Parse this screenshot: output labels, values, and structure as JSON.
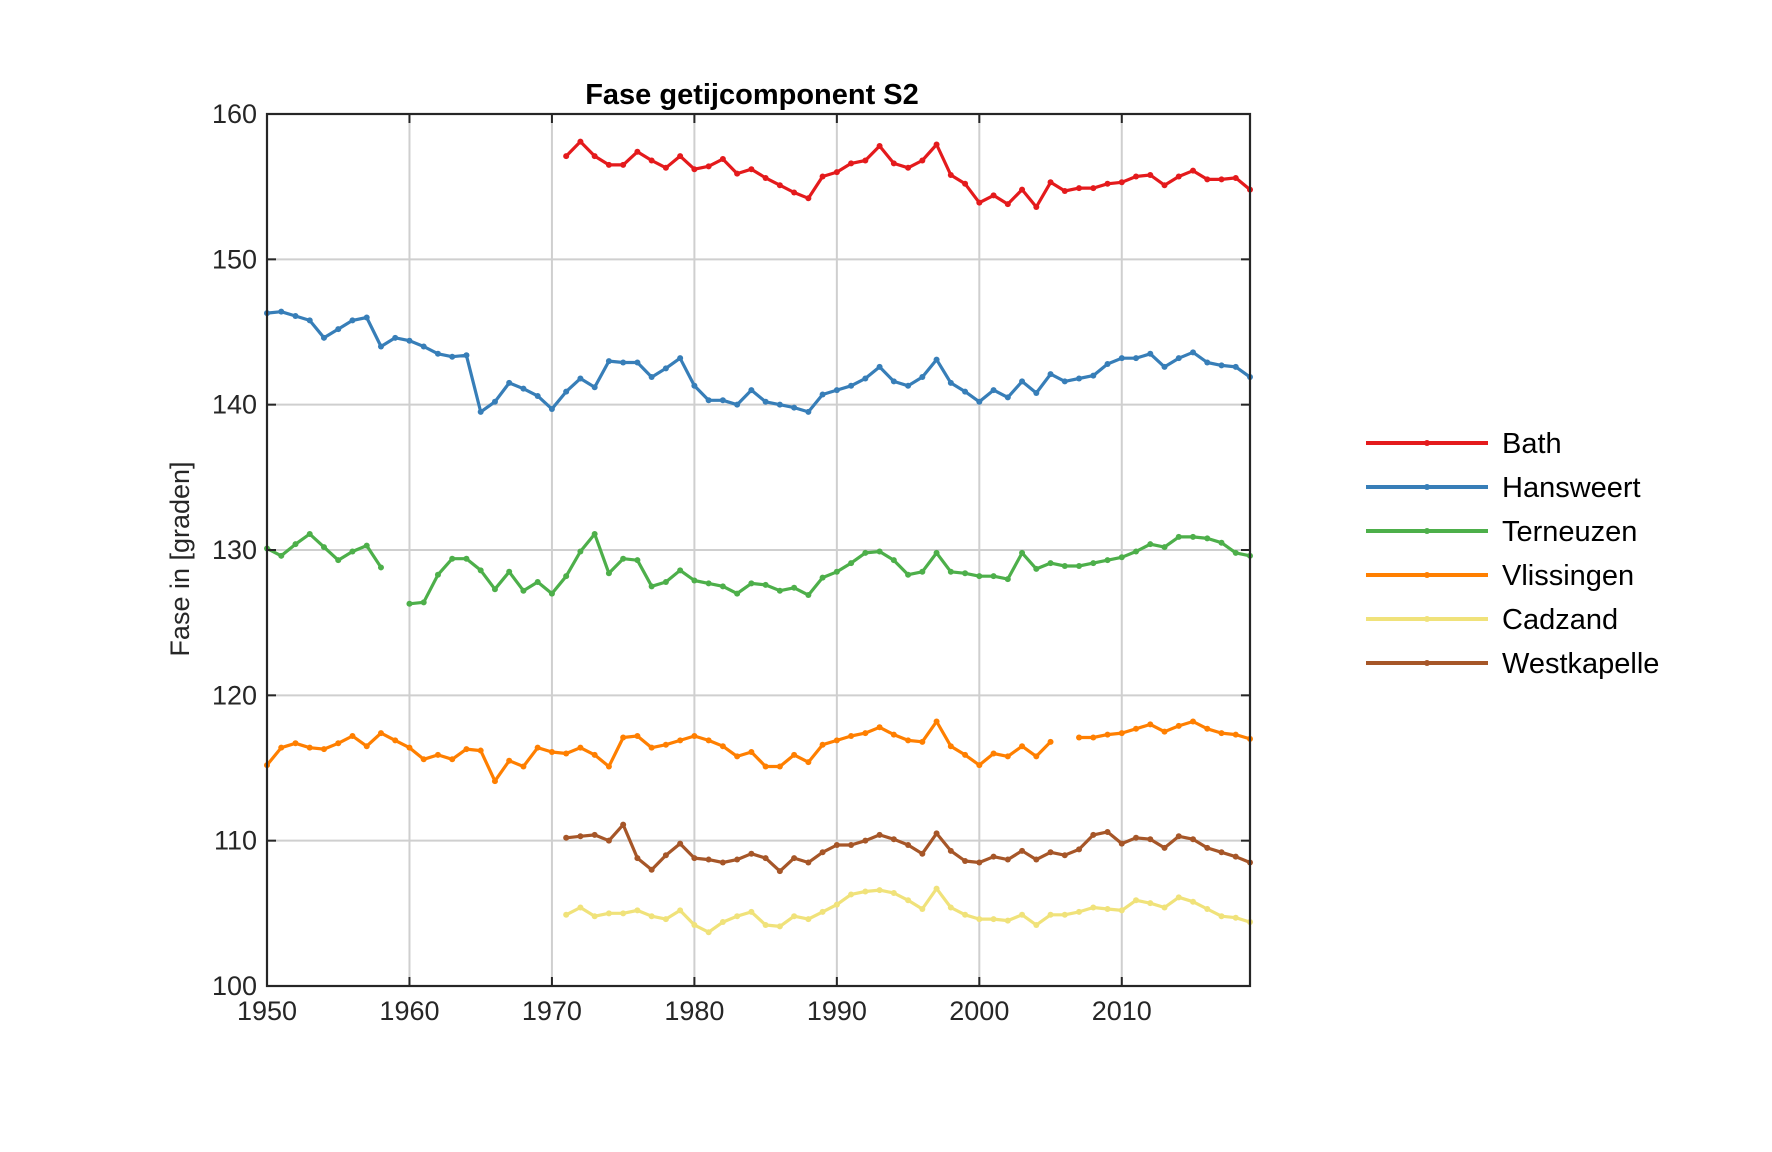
{
  "chart_data": {
    "type": "line",
    "title": "Fase getijcomponent S2",
    "xlabel": "",
    "ylabel": "Fase in [graden]",
    "xlim": [
      1950,
      2019
    ],
    "ylim": [
      100,
      160
    ],
    "xticks": [
      1950,
      1960,
      1970,
      1980,
      1990,
      2000,
      2010
    ],
    "yticks": [
      100,
      110,
      120,
      130,
      140,
      150,
      160
    ],
    "grid": true,
    "legend_position": "outside-right",
    "series": [
      {
        "name": "Bath",
        "color": "#e41a1c",
        "x": [
          1971,
          1972,
          1973,
          1974,
          1975,
          1976,
          1977,
          1978,
          1979,
          1980,
          1981,
          1982,
          1983,
          1984,
          1985,
          1986,
          1987,
          1988,
          1989,
          1990,
          1991,
          1992,
          1993,
          1994,
          1995,
          1996,
          1997,
          1998,
          1999,
          2000,
          2001,
          2002,
          2003,
          2004,
          2005,
          2006,
          2007,
          2008,
          2009,
          2010,
          2011,
          2012,
          2013,
          2014,
          2015,
          2016,
          2017,
          2018,
          2019
        ],
        "y": [
          157.1,
          158.1,
          157.1,
          156.5,
          156.5,
          157.4,
          156.8,
          156.3,
          157.1,
          156.2,
          156.4,
          156.9,
          155.9,
          156.2,
          155.6,
          155.1,
          154.6,
          154.2,
          155.7,
          156.0,
          156.6,
          156.8,
          157.8,
          156.6,
          156.3,
          156.8,
          157.9,
          155.8,
          155.2,
          153.9,
          154.4,
          153.8,
          154.8,
          153.6,
          155.3,
          154.7,
          154.9,
          154.9,
          155.2,
          155.3,
          155.7,
          155.8,
          155.1,
          155.7,
          156.1,
          155.5,
          155.5,
          155.6,
          154.8
        ]
      },
      {
        "name": "Hansweert",
        "color": "#377eb8",
        "x": [
          1950,
          1951,
          1952,
          1953,
          1954,
          1955,
          1956,
          1957,
          1958,
          1959,
          1960,
          1961,
          1962,
          1963,
          1964,
          1965,
          1966,
          1967,
          1968,
          1969,
          1970,
          1971,
          1972,
          1973,
          1974,
          1975,
          1976,
          1977,
          1978,
          1979,
          1980,
          1981,
          1982,
          1983,
          1984,
          1985,
          1986,
          1987,
          1988,
          1989,
          1990,
          1991,
          1992,
          1993,
          1994,
          1995,
          1996,
          1997,
          1998,
          1999,
          2000,
          2001,
          2002,
          2003,
          2004,
          2005,
          2006,
          2007,
          2008,
          2009,
          2010,
          2011,
          2012,
          2013,
          2014,
          2015,
          2016,
          2017,
          2018,
          2019
        ],
        "y": [
          146.3,
          146.4,
          146.1,
          145.8,
          144.6,
          145.2,
          145.8,
          146.0,
          144.0,
          144.6,
          144.4,
          144.0,
          143.5,
          143.3,
          143.4,
          139.5,
          140.2,
          141.5,
          141.1,
          140.6,
          139.7,
          140.9,
          141.8,
          141.2,
          143.0,
          142.9,
          142.9,
          141.9,
          142.5,
          143.2,
          141.3,
          140.3,
          140.3,
          140.0,
          141.0,
          140.2,
          140.0,
          139.8,
          139.5,
          140.7,
          141.0,
          141.3,
          141.8,
          142.6,
          141.6,
          141.3,
          141.9,
          143.1,
          141.5,
          140.9,
          140.2,
          141.0,
          140.5,
          141.6,
          140.8,
          142.1,
          141.6,
          141.8,
          142.0,
          142.8,
          143.2,
          143.2,
          143.5,
          142.6,
          143.2,
          143.6,
          142.9,
          142.7,
          142.6,
          141.9
        ]
      },
      {
        "name": "Terneuzen",
        "color": "#4daf4a",
        "x": [
          1950,
          1951,
          1952,
          1953,
          1954,
          1955,
          1956,
          1957,
          1958,
          null,
          1960,
          1961,
          1962,
          1963,
          1964,
          1965,
          1966,
          1967,
          1968,
          1969,
          1970,
          1971,
          1972,
          1973,
          1974,
          1975,
          1976,
          1977,
          1978,
          1979,
          1980,
          1981,
          1982,
          1983,
          1984,
          1985,
          1986,
          1987,
          1988,
          1989,
          1990,
          1991,
          1992,
          1993,
          1994,
          1995,
          1996,
          1997,
          1998,
          1999,
          2000,
          2001,
          2002,
          2003,
          2004,
          2005,
          2006,
          2007,
          2008,
          2009,
          2010,
          2011,
          2012,
          2013,
          2014,
          2015,
          2016,
          2017,
          2018,
          2019
        ],
        "y": [
          130.1,
          129.6,
          130.4,
          131.1,
          130.2,
          129.3,
          129.9,
          130.3,
          128.8,
          null,
          126.3,
          126.4,
          128.3,
          129.4,
          129.4,
          128.6,
          127.3,
          128.5,
          127.2,
          127.8,
          127.0,
          128.2,
          129.9,
          131.1,
          128.4,
          129.4,
          129.3,
          127.5,
          127.8,
          128.6,
          127.9,
          127.7,
          127.5,
          127.0,
          127.7,
          127.6,
          127.2,
          127.4,
          126.9,
          128.1,
          128.5,
          129.1,
          129.8,
          129.9,
          129.3,
          128.3,
          128.5,
          129.8,
          128.5,
          128.4,
          128.2,
          128.2,
          128.0,
          129.8,
          128.7,
          129.1,
          128.9,
          128.9,
          129.1,
          129.3,
          129.5,
          129.9,
          130.4,
          130.2,
          130.9,
          130.9,
          130.8,
          130.5,
          129.8,
          129.6
        ]
      },
      {
        "name": "Vlissingen",
        "color": "#ff7f00",
        "x": [
          1950,
          1951,
          1952,
          1953,
          1954,
          1955,
          1956,
          1957,
          1958,
          1959,
          1960,
          1961,
          1962,
          1963,
          1964,
          1965,
          1966,
          1967,
          1968,
          1969,
          1970,
          1971,
          1972,
          1973,
          1974,
          1975,
          1976,
          1977,
          1978,
          1979,
          1980,
          1981,
          1982,
          1983,
          1984,
          1985,
          1986,
          1987,
          1988,
          1989,
          1990,
          1991,
          1992,
          1993,
          1994,
          1995,
          1996,
          1997,
          1998,
          1999,
          2000,
          2001,
          2002,
          2003,
          2004,
          2005,
          null,
          2007,
          2008,
          2009,
          2010,
          2011,
          2012,
          2013,
          2014,
          2015,
          2016,
          2017,
          2018,
          2019
        ],
        "y": [
          115.2,
          116.4,
          116.7,
          116.4,
          116.3,
          116.7,
          117.2,
          116.5,
          117.4,
          116.9,
          116.4,
          115.6,
          115.9,
          115.6,
          116.3,
          116.2,
          114.1,
          115.5,
          115.1,
          116.4,
          116.1,
          116.0,
          116.4,
          115.9,
          115.1,
          117.1,
          117.2,
          116.4,
          116.6,
          116.9,
          117.2,
          116.9,
          116.5,
          115.8,
          116.1,
          115.1,
          115.1,
          115.9,
          115.4,
          116.6,
          116.9,
          117.2,
          117.4,
          117.8,
          117.3,
          116.9,
          116.8,
          118.2,
          116.5,
          115.9,
          115.2,
          116.0,
          115.8,
          116.5,
          115.8,
          116.8,
          null,
          117.1,
          117.1,
          117.3,
          117.4,
          117.7,
          118.0,
          117.5,
          117.9,
          118.2,
          117.7,
          117.4,
          117.3,
          117.0
        ]
      },
      {
        "name": "Cadzand",
        "color": "#f0e27a",
        "x": [
          1971,
          1972,
          1973,
          1974,
          1975,
          1976,
          1977,
          1978,
          1979,
          1980,
          1981,
          1982,
          1983,
          1984,
          1985,
          1986,
          1987,
          1988,
          1989,
          1990,
          1991,
          1992,
          1993,
          1994,
          1995,
          1996,
          1997,
          1998,
          1999,
          2000,
          2001,
          2002,
          2003,
          2004,
          2005,
          2006,
          2007,
          2008,
          2009,
          2010,
          2011,
          2012,
          2013,
          2014,
          2015,
          2016,
          2017,
          2018,
          2019
        ],
        "y": [
          104.9,
          105.4,
          104.8,
          105.0,
          105.0,
          105.2,
          104.8,
          104.6,
          105.2,
          104.2,
          103.7,
          104.4,
          104.8,
          105.1,
          104.2,
          104.1,
          104.8,
          104.6,
          105.1,
          105.6,
          106.3,
          106.5,
          106.6,
          106.4,
          105.9,
          105.3,
          106.7,
          105.4,
          104.9,
          104.6,
          104.6,
          104.5,
          104.9,
          104.2,
          104.9,
          104.9,
          105.1,
          105.4,
          105.3,
          105.2,
          105.9,
          105.7,
          105.4,
          106.1,
          105.8,
          105.3,
          104.8,
          104.7,
          104.4
        ]
      },
      {
        "name": "Westkapelle",
        "color": "#a65628",
        "x": [
          1971,
          1972,
          1973,
          1974,
          1975,
          1976,
          1977,
          1978,
          1979,
          1980,
          1981,
          1982,
          1983,
          1984,
          1985,
          1986,
          1987,
          1988,
          1989,
          1990,
          1991,
          1992,
          1993,
          1994,
          1995,
          1996,
          1997,
          1998,
          1999,
          2000,
          2001,
          2002,
          2003,
          2004,
          2005,
          2006,
          2007,
          2008,
          2009,
          2010,
          2011,
          2012,
          2013,
          2014,
          2015,
          2016,
          2017,
          2018,
          2019
        ],
        "y": [
          110.2,
          110.3,
          110.4,
          110.0,
          111.1,
          108.8,
          108.0,
          109.0,
          109.8,
          108.8,
          108.7,
          108.5,
          108.7,
          109.1,
          108.8,
          107.9,
          108.8,
          108.5,
          109.2,
          109.7,
          109.7,
          110.0,
          110.4,
          110.1,
          109.7,
          109.1,
          110.5,
          109.3,
          108.6,
          108.5,
          108.9,
          108.7,
          109.3,
          108.7,
          109.2,
          109.0,
          109.4,
          110.4,
          110.6,
          109.8,
          110.2,
          110.1,
          109.5,
          110.3,
          110.1,
          109.5,
          109.2,
          108.9,
          108.5
        ]
      }
    ]
  }
}
